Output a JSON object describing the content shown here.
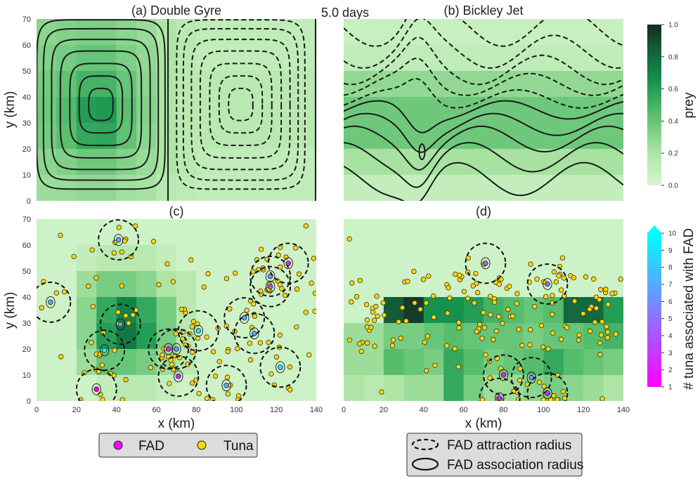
{
  "figure": {
    "time_label": "5.0 days",
    "xlabel": "x (km)",
    "ylabel": "y (km)",
    "xticks": [
      0,
      20,
      40,
      60,
      80,
      100,
      120,
      140
    ],
    "yticks": [
      0,
      10,
      20,
      30,
      40,
      50,
      60,
      70
    ],
    "xlim": [
      0,
      140
    ],
    "ylim": [
      0,
      70
    ]
  },
  "panels": {
    "a": {
      "title": "(a) Double Gyre"
    },
    "b": {
      "title": "(b) Bickley Jet"
    },
    "c": {
      "title": "(c)"
    },
    "d": {
      "title": "(d)"
    }
  },
  "colorbars": {
    "prey": {
      "label": "prey",
      "ticks": [
        "0.0",
        "0.2",
        "0.4",
        "0.6",
        "0.8",
        "1.0"
      ],
      "range": [
        0,
        1
      ]
    },
    "fad": {
      "label": "# tuna associated with FAD",
      "ticks": [
        "1",
        "2",
        "3",
        "4",
        "5",
        "6",
        "7",
        "8",
        "9",
        "10"
      ],
      "range": [
        1,
        10
      ]
    }
  },
  "legend_markers": {
    "fad": "FAD",
    "tuna": "Tuna"
  },
  "legend_radii": {
    "attraction": "FAD attraction radius",
    "association": "FAD association radius"
  },
  "colors": {
    "fad_min": "#ff00ff",
    "fad_max": "#00ffff",
    "tuna": "#ffd700",
    "prey_low": "#d6f5d0",
    "prey_high": "#17382a"
  },
  "chart_data": [
    {
      "panel": "a",
      "type": "heatmap+contour",
      "title": "(a) Double Gyre",
      "grid_cell_km": 10,
      "prey": [
        [
          0.3,
          0.32,
          0.34,
          0.34,
          0.3,
          0.26,
          0.2,
          0.15,
          0.12,
          0.12,
          0.12,
          0.12,
          0.12,
          0.12
        ],
        [
          0.33,
          0.36,
          0.4,
          0.4,
          0.34,
          0.28,
          0.2,
          0.15,
          0.12,
          0.12,
          0.12,
          0.12,
          0.12,
          0.12
        ],
        [
          0.36,
          0.42,
          0.5,
          0.5,
          0.4,
          0.3,
          0.2,
          0.15,
          0.15,
          0.15,
          0.15,
          0.15,
          0.15,
          0.15
        ],
        [
          0.38,
          0.46,
          0.6,
          0.62,
          0.44,
          0.32,
          0.2,
          0.15,
          0.15,
          0.15,
          0.15,
          0.15,
          0.15,
          0.15
        ],
        [
          0.36,
          0.44,
          0.55,
          0.56,
          0.42,
          0.3,
          0.2,
          0.15,
          0.15,
          0.15,
          0.15,
          0.15,
          0.15,
          0.15
        ],
        [
          0.3,
          0.33,
          0.38,
          0.38,
          0.32,
          0.26,
          0.2,
          0.15,
          0.12,
          0.12,
          0.12,
          0.12,
          0.12,
          0.12
        ],
        [
          0.25,
          0.26,
          0.28,
          0.28,
          0.24,
          0.22,
          0.16,
          0.13,
          0.12,
          0.12,
          0.12,
          0.12,
          0.12,
          0.12
        ]
      ],
      "streamlines": "double gyre, clockwise (solid) left cell and counter-clockwise (dashed) right cell"
    },
    {
      "panel": "b",
      "type": "heatmap+contour",
      "title": "(b) Bickley Jet",
      "grid_cell_km": 10,
      "prey": [
        [
          0.08,
          0.08,
          0.08,
          0.08,
          0.08,
          0.08,
          0.08,
          0.08,
          0.08,
          0.08,
          0.08,
          0.08,
          0.08,
          0.08
        ],
        [
          0.12,
          0.12,
          0.12,
          0.12,
          0.12,
          0.12,
          0.12,
          0.12,
          0.12,
          0.12,
          0.12,
          0.12,
          0.12,
          0.12
        ],
        [
          0.28,
          0.28,
          0.28,
          0.28,
          0.28,
          0.28,
          0.28,
          0.28,
          0.28,
          0.28,
          0.28,
          0.28,
          0.28,
          0.28
        ],
        [
          0.38,
          0.38,
          0.38,
          0.38,
          0.38,
          0.38,
          0.38,
          0.38,
          0.38,
          0.38,
          0.38,
          0.38,
          0.38,
          0.38
        ],
        [
          0.38,
          0.38,
          0.38,
          0.38,
          0.38,
          0.38,
          0.38,
          0.38,
          0.38,
          0.38,
          0.38,
          0.38,
          0.38,
          0.38
        ],
        [
          0.22,
          0.22,
          0.22,
          0.22,
          0.22,
          0.22,
          0.22,
          0.22,
          0.22,
          0.22,
          0.22,
          0.22,
          0.22,
          0.22
        ],
        [
          0.1,
          0.1,
          0.1,
          0.1,
          0.1,
          0.1,
          0.1,
          0.1,
          0.1,
          0.1,
          0.1,
          0.1,
          0.1,
          0.1
        ]
      ],
      "streamlines": "zonal jet, solid lines in lower half, dashed in upper half, meandering"
    },
    {
      "panel": "c",
      "type": "scatter+heatmap",
      "title": "(c)",
      "grid_cell_km": 10,
      "prey": [
        [
          0.05,
          0.05,
          0.05,
          0.05,
          0.05,
          0.05,
          0.05,
          0.05,
          0.05,
          0.05,
          0.05,
          0.05,
          0.05,
          0.05
        ],
        [
          0.05,
          0.05,
          0.1,
          0.15,
          0.15,
          0.15,
          0.1,
          0.05,
          0.05,
          0.05,
          0.05,
          0.05,
          0.05,
          0.05
        ],
        [
          0.05,
          0.05,
          0.25,
          0.35,
          0.35,
          0.3,
          0.2,
          0.15,
          0.05,
          0.05,
          0.05,
          0.05,
          0.05,
          0.05
        ],
        [
          0.05,
          0.05,
          0.3,
          0.55,
          0.7,
          0.55,
          0.35,
          0.15,
          0.05,
          0.05,
          0.05,
          0.05,
          0.05,
          0.05
        ],
        [
          0.05,
          0.05,
          0.3,
          0.6,
          0.75,
          0.6,
          0.35,
          0.15,
          0.05,
          0.05,
          0.05,
          0.05,
          0.05,
          0.05
        ],
        [
          0.05,
          0.05,
          0.25,
          0.4,
          0.4,
          0.35,
          0.25,
          0.15,
          0.05,
          0.05,
          0.05,
          0.05,
          0.05,
          0.05
        ],
        [
          0.05,
          0.05,
          0.05,
          0.1,
          0.15,
          0.15,
          0.1,
          0.05,
          0.05,
          0.05,
          0.05,
          0.05,
          0.05,
          0.05
        ]
      ],
      "fads": [
        {
          "x": 30,
          "y": 4.5,
          "n": 1
        },
        {
          "x": 71,
          "y": 9.5,
          "n": 2
        },
        {
          "x": 95,
          "y": 6,
          "n": 7
        },
        {
          "x": 122,
          "y": 13,
          "n": 9
        },
        {
          "x": 34,
          "y": 19.5,
          "n": 10
        },
        {
          "x": 66,
          "y": 20,
          "n": 2
        },
        {
          "x": 70,
          "y": 20,
          "n": 6
        },
        {
          "x": 81,
          "y": 27,
          "n": 9
        },
        {
          "x": 42,
          "y": 29.5,
          "n": 7
        },
        {
          "x": 104,
          "y": 32,
          "n": 7
        },
        {
          "x": 109,
          "y": 26,
          "n": 7
        },
        {
          "x": 7,
          "y": 38,
          "n": 7
        },
        {
          "x": 117,
          "y": 44,
          "n": 4
        },
        {
          "x": 117,
          "y": 48,
          "n": 6
        },
        {
          "x": 126,
          "y": 53,
          "n": 2
        },
        {
          "x": 41,
          "y": 62,
          "n": 7
        }
      ]
    },
    {
      "panel": "d",
      "type": "scatter+heatmap",
      "title": "(d)",
      "grid_cell_km": 10,
      "prey": [
        [
          0.05,
          0.05,
          0.05,
          0.05,
          0.05,
          0.05,
          0.05,
          0.05,
          0.05,
          0.05,
          0.05,
          0.05,
          0.05,
          0.05
        ],
        [
          0.05,
          0.05,
          0.05,
          0.05,
          0.05,
          0.05,
          0.05,
          0.05,
          0.05,
          0.05,
          0.05,
          0.05,
          0.05,
          0.05
        ],
        [
          0.05,
          0.05,
          0.05,
          0.05,
          0.05,
          0.05,
          0.05,
          0.05,
          0.05,
          0.05,
          0.05,
          0.05,
          0.05,
          0.05
        ],
        [
          0.05,
          0.05,
          0.85,
          0.95,
          0.65,
          0.65,
          0.6,
          0.5,
          0.45,
          0.4,
          0.45,
          0.8,
          0.8,
          0.6
        ],
        [
          0.25,
          0.25,
          0.35,
          0.35,
          0.4,
          0.45,
          0.4,
          0.4,
          0.4,
          0.35,
          0.4,
          0.4,
          0.45,
          0.5
        ],
        [
          0.25,
          0.25,
          0.45,
          0.4,
          0.35,
          0.55,
          0.45,
          0.35,
          0.4,
          0.45,
          0.55,
          0.45,
          0.4,
          0.35
        ],
        [
          0.2,
          0.15,
          0.2,
          0.25,
          0.25,
          0.55,
          0.35,
          0.25,
          0.25,
          0.3,
          0.35,
          0.3,
          0.25,
          0.2
        ]
      ],
      "fads": [
        {
          "x": 78,
          "y": 1,
          "n": 2
        },
        {
          "x": 80,
          "y": 10,
          "n": 2
        },
        {
          "x": 94,
          "y": 9,
          "n": 6
        },
        {
          "x": 102,
          "y": 3,
          "n": 2
        },
        {
          "x": 71,
          "y": 53,
          "n": 5
        },
        {
          "x": 102,
          "y": 45,
          "n": 5
        }
      ]
    }
  ]
}
